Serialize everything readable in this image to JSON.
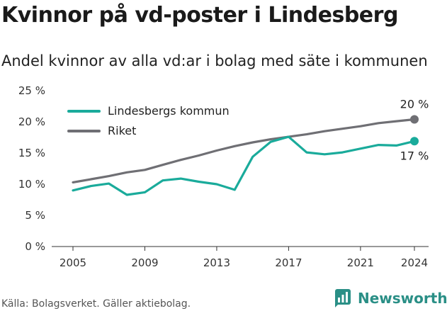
{
  "title": "Kvinnor på vd-poster i Lindesberg",
  "subtitle": "Andel kvinnor av alla vd:ar i bolag med säte i kommunen",
  "source": "Källa: Bolagsverket. Gäller aktiebolag.",
  "brand": {
    "name": "Newsworthy",
    "icon": "newsworthy-logo-icon",
    "color": "#2a8f86"
  },
  "chart_data": {
    "type": "line",
    "x": [
      2005,
      2006,
      2007,
      2008,
      2009,
      2010,
      2011,
      2012,
      2013,
      2014,
      2015,
      2016,
      2017,
      2018,
      2019,
      2020,
      2021,
      2022,
      2023,
      2024
    ],
    "series": [
      {
        "name": "Lindesbergs kommun",
        "color": "#1aab9b",
        "values": [
          9.0,
          9.7,
          10.1,
          8.3,
          8.7,
          10.6,
          10.9,
          10.4,
          10.0,
          9.1,
          14.4,
          16.8,
          17.6,
          15.1,
          14.8,
          15.1,
          15.7,
          16.3,
          16.2,
          16.9
        ],
        "end_label": "17 %"
      },
      {
        "name": "Riket",
        "color": "#6f6f74",
        "values": [
          10.3,
          10.8,
          11.3,
          11.9,
          12.3,
          13.1,
          13.9,
          14.6,
          15.4,
          16.1,
          16.7,
          17.2,
          17.6,
          18.0,
          18.5,
          18.9,
          19.3,
          19.8,
          20.1,
          20.4
        ],
        "end_label": "20 %"
      }
    ],
    "xticks": [
      2005,
      2009,
      2013,
      2017,
      2021,
      2024
    ],
    "yticks": [
      0,
      5,
      10,
      15,
      20,
      25
    ],
    "ytick_labels": [
      "0 %",
      "5 %",
      "10 %",
      "15 %",
      "20 %",
      "25 %"
    ],
    "ylim": [
      0,
      25
    ],
    "xlim": [
      2005,
      2024
    ],
    "grid": false,
    "legend": "top-left"
  }
}
